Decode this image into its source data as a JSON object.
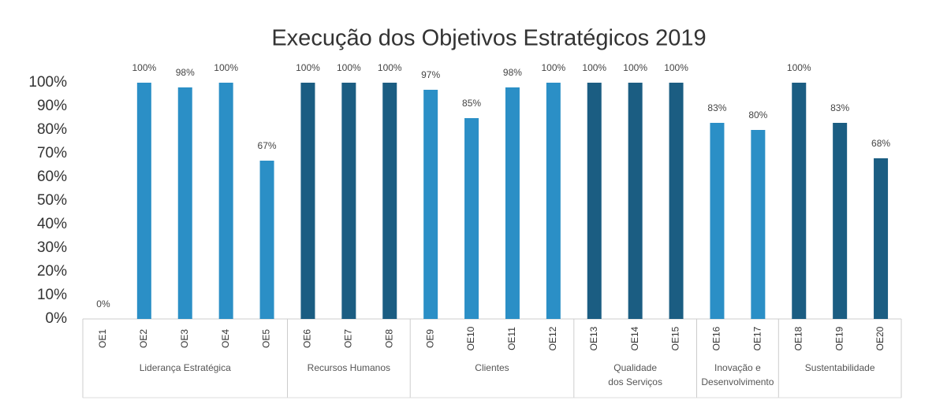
{
  "chart_data": {
    "type": "bar",
    "title": "Execução dos Objetivos Estratégicos 2019",
    "categories": [
      "OE1",
      "OE2",
      "OE3",
      "OE4",
      "OE5",
      "OE6",
      "OE7",
      "OE8",
      "OE9",
      "OE10",
      "OE11",
      "OE12",
      "OE13",
      "OE14",
      "OE15",
      "OE16",
      "OE17",
      "OE18",
      "OE19",
      "OE20"
    ],
    "values": [
      0,
      100,
      98,
      100,
      67,
      100,
      100,
      100,
      97,
      85,
      98,
      100,
      100,
      100,
      100,
      83,
      80,
      100,
      83,
      68
    ],
    "value_labels": [
      "0%",
      "100%",
      "98%",
      "100%",
      "67%",
      "100%",
      "100%",
      "100%",
      "97%",
      "85%",
      "98%",
      "100%",
      "100%",
      "100%",
      "100%",
      "83%",
      "80%",
      "100%",
      "83%",
      "68%"
    ],
    "groups": [
      {
        "name": "Liderança Estratégica",
        "size": 5,
        "color": "#2b8fc6"
      },
      {
        "name": "Recursos Humanos",
        "size": 3,
        "color": "#1b5d82"
      },
      {
        "name": "Clientes",
        "size": 4,
        "color": "#2b8fc6"
      },
      {
        "name": "Qualidade\ndos Serviços",
        "size": 3,
        "color": "#1b5d82"
      },
      {
        "name": "Inovação e\nDesenvolvimento",
        "size": 2,
        "color": "#2b8fc6"
      },
      {
        "name": "Sustentabilidade",
        "size": 3,
        "color": "#1b5d82"
      }
    ],
    "ylim": [
      0,
      100
    ],
    "yticks": [
      {
        "value": 0,
        "label": "0%"
      },
      {
        "value": 10,
        "label": "10%"
      },
      {
        "value": 20,
        "label": "20%"
      },
      {
        "value": 30,
        "label": "30%"
      },
      {
        "value": 40,
        "label": "40%"
      },
      {
        "value": 50,
        "label": "50%"
      },
      {
        "value": 60,
        "label": "60%"
      },
      {
        "value": 70,
        "label": "70%"
      },
      {
        "value": 80,
        "label": "80%"
      },
      {
        "value": 90,
        "label": "90%"
      },
      {
        "value": 100,
        "label": "100%"
      }
    ]
  }
}
